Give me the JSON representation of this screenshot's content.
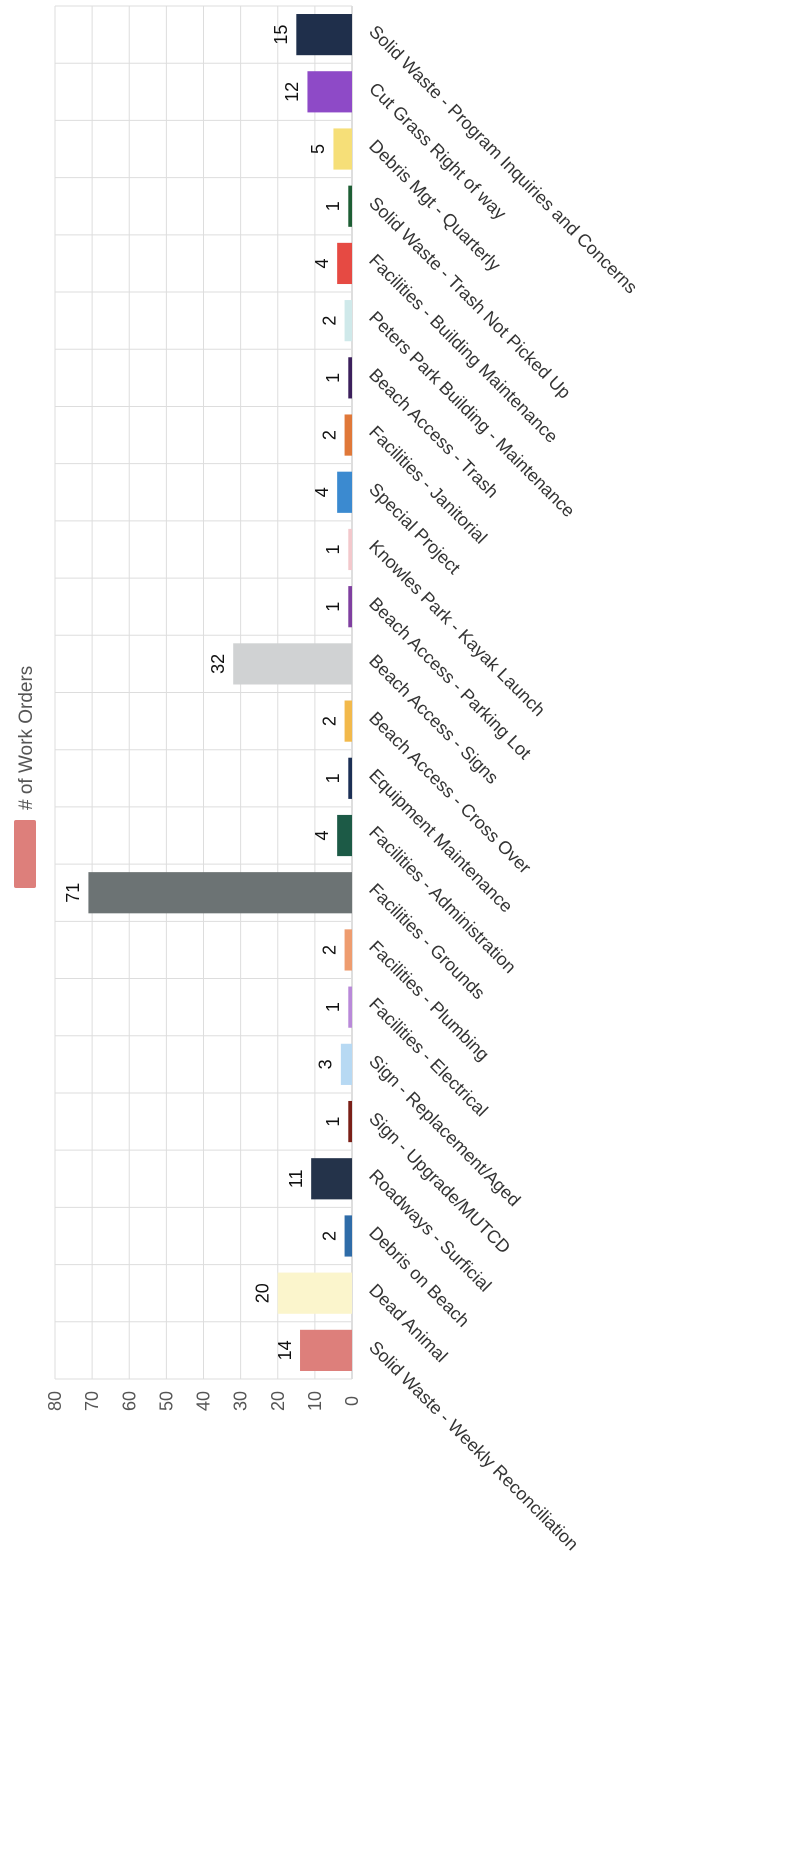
{
  "chart_data": {
    "type": "bar",
    "orientation": "rotated-90-clockwise",
    "legend": {
      "label": "# of Work Orders",
      "color": "#dd7f7b",
      "placement": "top"
    },
    "ylim": [
      0,
      80
    ],
    "yticks": [
      0,
      10,
      20,
      30,
      40,
      50,
      60,
      70,
      80
    ],
    "grid": true,
    "categories": [
      "Solid Waste - Weekly Reconciliation",
      "Dead Animal",
      "Debris on Beach",
      "Roadways - Surficial",
      "Sign - Upgrade/MUTCD",
      "Sign - Replacement/Aged",
      "Facilities - Electrical",
      "Facilities - Plumbing",
      "Facilities - Grounds",
      "Facilities - Administration",
      "Equipment Maintenance",
      "Beach Access - Cross Over",
      "Beach Access - Signs",
      "Beach Access - Parking Lot",
      "Knowles Park - Kayak Launch",
      "Special Project",
      "Facilities - Janitorial",
      "Beach Access - Trash",
      "Peters Park Building - Maintenance",
      "Facilities - Building Maintenance",
      "Solid Waste - Trash Not Picked Up",
      "Debris Mgt - Quarterly",
      "Cut Grass Right of way",
      "Solid Waste - Program Inquiries and Concerns"
    ],
    "values": [
      14,
      20,
      2,
      11,
      1,
      3,
      1,
      2,
      71,
      4,
      1,
      2,
      32,
      1,
      1,
      4,
      2,
      1,
      2,
      4,
      1,
      5,
      12,
      15
    ],
    "colors": [
      "#dd7f7b",
      "#fbf5cc",
      "#2f6ca8",
      "#24334a",
      "#7a1f17",
      "#b7d9f3",
      "#b989d9",
      "#ee9c6f",
      "#6c7374",
      "#1c5a46",
      "#1b2f55",
      "#f2b94b",
      "#d0d2d3",
      "#7f3fa0",
      "#f3c8cc",
      "#3b8ad0",
      "#e07839",
      "#3b1f5c",
      "#cfe9ea",
      "#e64a43",
      "#1d5e34",
      "#f6df78",
      "#8e4ac7",
      "#1f2f4b"
    ]
  }
}
